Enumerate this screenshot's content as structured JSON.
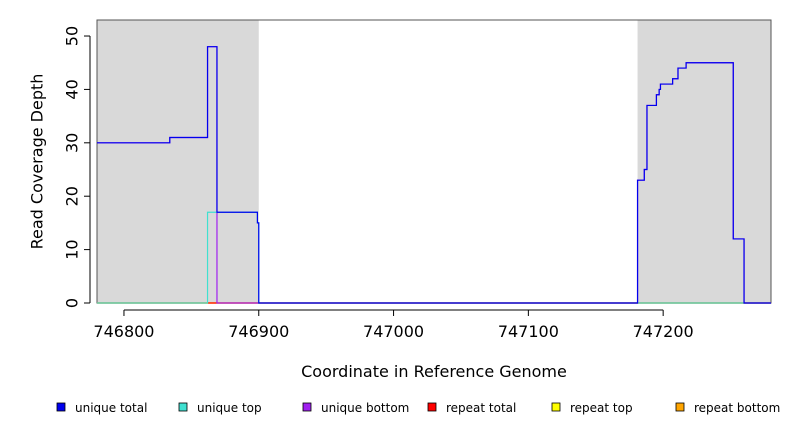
{
  "chart_data": {
    "type": "line",
    "xlabel": "Coordinate in Reference Genome",
    "ylabel": "Read Coverage Depth",
    "xlim": [
      746780,
      747280
    ],
    "ylim": [
      0,
      53
    ],
    "x_ticks": [
      746800,
      746900,
      747000,
      747100,
      747200
    ],
    "x_tick_labels": [
      "746800",
      "746900",
      "747000",
      "747100",
      "747200"
    ],
    "y_ticks": [
      0,
      10,
      20,
      30,
      40,
      50
    ],
    "y_tick_labels": [
      "0",
      "10",
      "20",
      "30",
      "40",
      "50"
    ],
    "shaded_regions": [
      {
        "start": 746780,
        "end": 746900
      },
      {
        "start": 747181,
        "end": 747280
      }
    ],
    "legend_placement": "bottom",
    "series": [
      {
        "name": "unique total",
        "color": "#0000ee",
        "points": [
          [
            746780,
            30
          ],
          [
            746834,
            30
          ],
          [
            746834,
            31
          ],
          [
            746862,
            31
          ],
          [
            746862,
            48
          ],
          [
            746869,
            48
          ],
          [
            746869,
            17
          ],
          [
            746899,
            17
          ],
          [
            746899,
            15
          ],
          [
            746900,
            15
          ],
          [
            746900,
            0
          ],
          [
            747181,
            0
          ],
          [
            747181,
            23
          ],
          [
            747186,
            23
          ],
          [
            747186,
            25
          ],
          [
            747188,
            25
          ],
          [
            747188,
            37
          ],
          [
            747195,
            37
          ],
          [
            747195,
            39
          ],
          [
            747197,
            39
          ],
          [
            747197,
            40
          ],
          [
            747198,
            40
          ],
          [
            747198,
            41
          ],
          [
            747207,
            41
          ],
          [
            747207,
            42
          ],
          [
            747211,
            42
          ],
          [
            747211,
            44
          ],
          [
            747217,
            44
          ],
          [
            747217,
            45
          ],
          [
            747252,
            45
          ],
          [
            747252,
            12
          ],
          [
            747260,
            12
          ],
          [
            747260,
            0
          ],
          [
            747280,
            0
          ]
        ]
      },
      {
        "name": "unique top",
        "color": "#40e0d0",
        "points": [
          [
            746780,
            0
          ],
          [
            746862,
            0
          ],
          [
            746862,
            17
          ],
          [
            746899,
            17
          ],
          [
            746899,
            15
          ],
          [
            746900,
            15
          ],
          [
            746900,
            0
          ],
          [
            747280,
            0
          ]
        ]
      },
      {
        "name": "unique bottom",
        "color": "#a020f0",
        "points": [
          [
            746780,
            30
          ],
          [
            746834,
            30
          ],
          [
            746834,
            31
          ],
          [
            746862,
            31
          ],
          [
            746862,
            48
          ],
          [
            746869,
            48
          ],
          [
            746869,
            0
          ],
          [
            747181,
            0
          ],
          [
            747181,
            23
          ],
          [
            747186,
            23
          ],
          [
            747186,
            25
          ],
          [
            747188,
            25
          ],
          [
            747188,
            37
          ],
          [
            747195,
            37
          ],
          [
            747195,
            39
          ],
          [
            747197,
            39
          ],
          [
            747197,
            40
          ],
          [
            747198,
            40
          ],
          [
            747198,
            41
          ],
          [
            747207,
            41
          ],
          [
            747207,
            42
          ],
          [
            747211,
            42
          ],
          [
            747211,
            44
          ],
          [
            747217,
            44
          ],
          [
            747217,
            45
          ],
          [
            747252,
            45
          ],
          [
            747252,
            12
          ],
          [
            747260,
            12
          ],
          [
            747260,
            0
          ],
          [
            747280,
            0
          ]
        ]
      },
      {
        "name": "repeat total",
        "color": "#ff0000",
        "points": [
          [
            746780,
            0
          ],
          [
            747280,
            0
          ]
        ]
      },
      {
        "name": "repeat top",
        "color": "#ffff00",
        "points": [
          [
            746780,
            0
          ],
          [
            747280,
            0
          ]
        ]
      },
      {
        "name": "repeat bottom",
        "color": "#ffa500",
        "points": [
          [
            746780,
            0
          ],
          [
            747280,
            0
          ]
        ]
      }
    ]
  }
}
